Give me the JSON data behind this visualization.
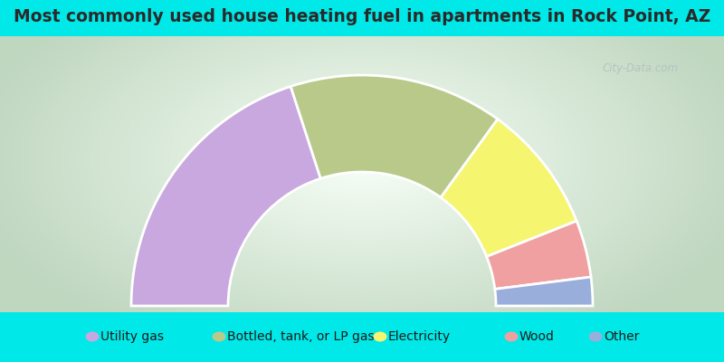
{
  "title": "Most commonly used house heating fuel in apartments in Rock Point, AZ",
  "categories": [
    "Utility gas",
    "Bottled, tank, or LP gas",
    "Electricity",
    "Wood",
    "Other"
  ],
  "values": [
    40,
    30,
    18,
    8,
    4
  ],
  "colors": [
    "#c9a8df",
    "#b8c98a",
    "#f5f570",
    "#f0a0a0",
    "#9aaedc"
  ],
  "cyan_color": "#00e8e8",
  "title_color": "#2a2a2a",
  "title_fontsize": 13.5,
  "legend_fontsize": 10,
  "watermark": "City-Data.com"
}
